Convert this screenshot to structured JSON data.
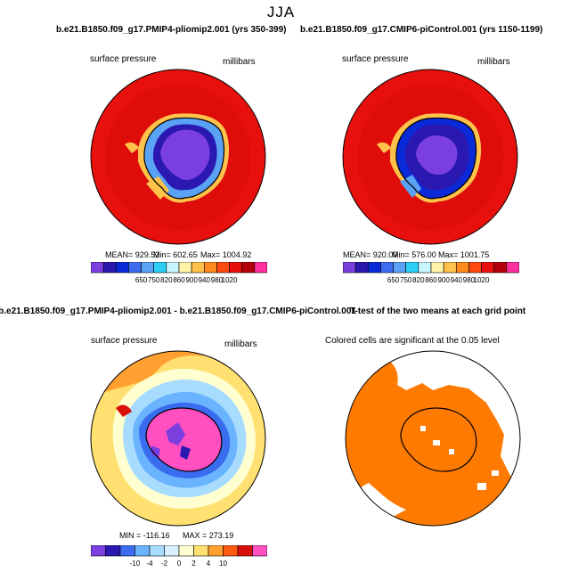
{
  "figure_title": "JJA",
  "panels": [
    {
      "title": "b.e21.B1850.f09_g17.PMIP4-pliomip2.001 (yrs 350-399)",
      "left_label": "surface pressure",
      "right_label": "millibars",
      "stats": {
        "mean": "MEAN= 929.52",
        "min": "Min= 602.65",
        "max": "Max= 1004.92"
      },
      "colorbar_ticks": [
        "650",
        "750",
        "820",
        "860",
        "900",
        "940",
        "980",
        "1020"
      ]
    },
    {
      "title": "b.e21.B1850.f09_g17.CMIP6-piControl.001 (yrs 1150-1199)",
      "left_label": "surface pressure",
      "right_label": "millibars",
      "stats": {
        "mean": "MEAN= 920.09",
        "min": "Min= 576.00",
        "max": "Max= 1001.75"
      },
      "colorbar_ticks": [
        "650",
        "750",
        "820",
        "860",
        "900",
        "940",
        "980",
        "1020"
      ]
    },
    {
      "title": "b.e21.B1850.f09_g17.PMIP4-pliomip2.001 - b.e21.B1850.f09_g17.CMIP6-piControl.001",
      "left_label": "surface pressure",
      "right_label": "millibars",
      "stats": {
        "min": "MIN = -116.16",
        "max": "MAX = 273.19"
      },
      "colorbar_ticks": [
        "-10",
        "-4",
        "-2",
        "0",
        "2",
        "4",
        "10"
      ]
    },
    {
      "title": "T-test of the two means at each grid point",
      "label": "Colored cells are significant at the 0.05 level"
    }
  ],
  "colors": {
    "abs_scale": [
      "#7b3fe0",
      "#2a18b0",
      "#0a2ad8",
      "#3e6cf0",
      "#5aa2f5",
      "#2ad0f5",
      "#c8f5ff",
      "#fff4a8",
      "#ffc24a",
      "#ff8a1e",
      "#ff4a10",
      "#e8100c",
      "#b4000a",
      "#ff2fa0"
    ],
    "diff_scale": [
      "#7b3fe0",
      "#2a18b0",
      "#3a6cf0",
      "#6ab4ff",
      "#a8dcff",
      "#d8f0ff",
      "#ffffd0",
      "#ffe070",
      "#ffa030",
      "#ff5a10",
      "#d8100a",
      "#ff4fc0"
    ],
    "significance": "#ff7a00"
  },
  "chart_data": [
    {
      "type": "heatmap",
      "title": "b.e21.B1850.f09_g17.PMIP4-pliomip2.001 (yrs 350-399)",
      "variable": "surface pressure",
      "units": "millibars",
      "mean": 929.52,
      "min": 602.65,
      "max": 1004.92,
      "colorbar_levels": [
        650,
        750,
        820,
        860,
        900,
        940,
        980,
        1020
      ]
    },
    {
      "type": "heatmap",
      "title": "b.e21.B1850.f09_g17.CMIP6-piControl.001 (yrs 1150-1199)",
      "variable": "surface pressure",
      "units": "millibars",
      "mean": 920.09,
      "min": 576.0,
      "max": 1001.75,
      "colorbar_levels": [
        650,
        750,
        820,
        860,
        900,
        940,
        980,
        1020
      ]
    },
    {
      "type": "heatmap",
      "title": "b.e21.B1850.f09_g17.PMIP4-pliomip2.001 - b.e21.B1850.f09_g17.CMIP6-piControl.001",
      "variable": "surface pressure",
      "units": "millibars",
      "min": -116.16,
      "max": 273.19,
      "colorbar_levels": [
        -10,
        -4,
        -2,
        0,
        2,
        4,
        10
      ]
    },
    {
      "type": "heatmap",
      "title": "T-test of the two means at each grid point",
      "significance_level": 0.05
    }
  ]
}
